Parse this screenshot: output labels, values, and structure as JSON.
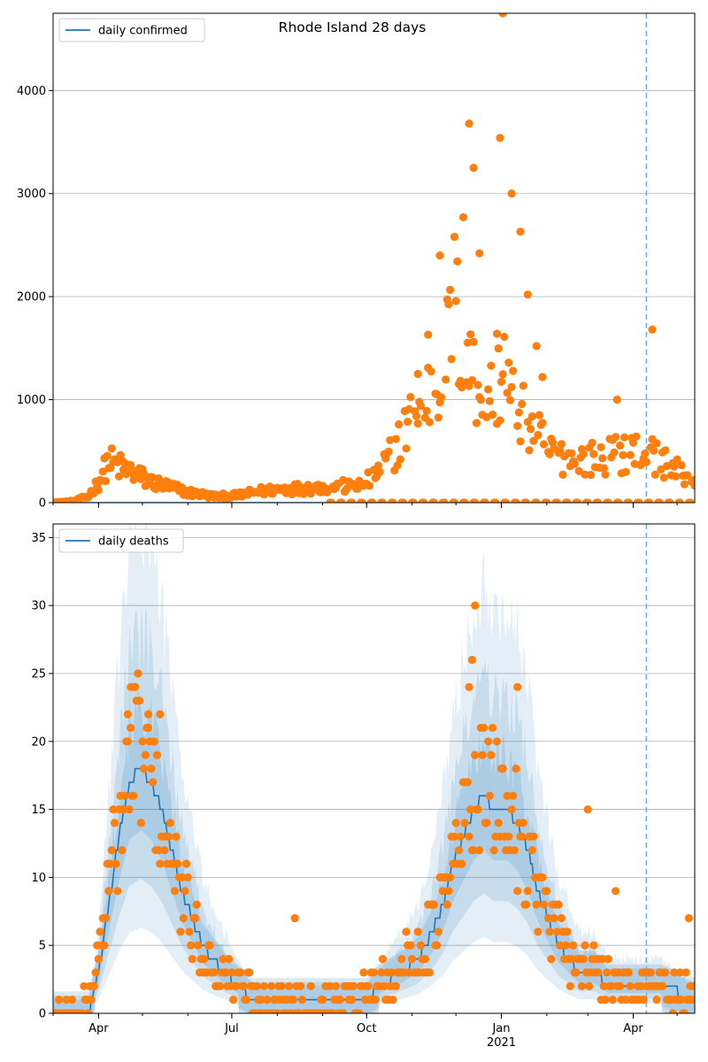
{
  "chart_data": [
    {
      "type": "scatter",
      "title": "Rhode Island 28 days",
      "legend": {
        "entries": [
          "daily confirmed"
        ],
        "position": "top-left"
      },
      "x_range": [
        "2020-03-01",
        "2021-05-13"
      ],
      "ylim": [
        0,
        4750
      ],
      "y_ticks": [
        0,
        1000,
        2000,
        3000,
        4000
      ],
      "x_ticks": [
        {
          "date": "2020-04-01",
          "label": "Apr"
        },
        {
          "date": "2020-07-01",
          "label": "Jul"
        },
        {
          "date": "2020-10-01",
          "label": "Oct"
        },
        {
          "date": "2021-01-01",
          "label": "Jan",
          "sub": "2021"
        },
        {
          "date": "2021-04-01",
          "label": "Apr"
        }
      ],
      "grid": "horizontal",
      "vline_date": "2021-04-10",
      "colors": {
        "points": "#ff7f0e",
        "line": "#1f77b4",
        "vline": "#6aaed6",
        "band": "#1f77b4"
      },
      "reported_anchors": [
        [
          "2020-03-01",
          2
        ],
        [
          "2020-03-15",
          15
        ],
        [
          "2020-03-25",
          60
        ],
        [
          "2020-04-01",
          200
        ],
        [
          "2020-04-08",
          400
        ],
        [
          "2020-04-15",
          350
        ],
        [
          "2020-04-25",
          290
        ],
        [
          "2020-05-05",
          210
        ],
        [
          "2020-05-20",
          150
        ],
        [
          "2020-06-01",
          100
        ],
        [
          "2020-06-20",
          60
        ],
        [
          "2020-07-05",
          70
        ],
        [
          "2020-07-20",
          110
        ],
        [
          "2020-08-01",
          130
        ],
        [
          "2020-08-20",
          140
        ],
        [
          "2020-09-01",
          150
        ],
        [
          "2020-09-20",
          160
        ],
        [
          "2020-10-01",
          200
        ],
        [
          "2020-10-15",
          400
        ],
        [
          "2020-11-01",
          800
        ],
        [
          "2020-11-15",
          1100
        ],
        [
          "2020-11-25",
          1500
        ],
        [
          "2020-12-01",
          1800
        ],
        [
          "2020-12-10",
          1300
        ],
        [
          "2020-12-20",
          1100
        ],
        [
          "2021-01-01",
          1200
        ],
        [
          "2021-01-10",
          1000
        ],
        [
          "2021-01-20",
          800
        ],
        [
          "2021-02-01",
          500
        ],
        [
          "2021-02-15",
          420
        ],
        [
          "2021-03-01",
          420
        ],
        [
          "2021-03-15",
          450
        ],
        [
          "2021-04-01",
          500
        ],
        [
          "2021-04-15",
          450
        ],
        [
          "2021-05-01",
          300
        ],
        [
          "2021-05-13",
          200
        ]
      ],
      "reported_outliers": [
        [
          "2021-01-02",
          4750
        ],
        [
          "2020-12-10",
          3680
        ],
        [
          "2020-12-31",
          3540
        ],
        [
          "2020-12-13",
          3250
        ],
        [
          "2021-01-08",
          3000
        ],
        [
          "2020-12-06",
          2770
        ],
        [
          "2021-01-14",
          2630
        ],
        [
          "2020-11-30",
          2580
        ],
        [
          "2020-12-17",
          2420
        ],
        [
          "2020-11-20",
          2400
        ],
        [
          "2021-01-19",
          2020
        ],
        [
          "2021-04-14",
          1680
        ],
        [
          "2020-12-29",
          1640
        ],
        [
          "2021-01-03",
          1610
        ],
        [
          "2020-11-12",
          1630
        ],
        [
          "2021-01-25",
          1520
        ],
        [
          "2020-12-13",
          1560
        ],
        [
          "2020-11-05",
          1250
        ],
        [
          "2021-01-29",
          1220
        ],
        [
          "2021-03-21",
          1000
        ]
      ],
      "reported_zero_days_from": "2020-09-05",
      "trend_anchors": [
        [
          "2020-03-01",
          0
        ],
        [
          "2021-05-13",
          0
        ]
      ]
    },
    {
      "type": "scatter",
      "legend": {
        "entries": [
          "daily deaths"
        ],
        "position": "top-left"
      },
      "x_range": [
        "2020-03-01",
        "2021-05-13"
      ],
      "ylim": [
        0,
        36
      ],
      "y_ticks": [
        0,
        5,
        10,
        15,
        20,
        25,
        30,
        35
      ],
      "x_ticks": [
        {
          "date": "2020-04-01",
          "label": "Apr"
        },
        {
          "date": "2020-07-01",
          "label": "Jul"
        },
        {
          "date": "2020-10-01",
          "label": "Oct"
        },
        {
          "date": "2021-01-01",
          "label": "Jan",
          "sub": "2021"
        },
        {
          "date": "2021-04-01",
          "label": "Apr"
        }
      ],
      "grid": "horizontal",
      "vline_date": "2021-04-10",
      "colors": {
        "points": "#ff7f0e",
        "line": "#1f77b4",
        "vline": "#6aaed6",
        "band": "#1f77b4"
      },
      "reported_anchors": [
        [
          "2020-03-01",
          0
        ],
        [
          "2020-03-20",
          0
        ],
        [
          "2020-03-28",
          2
        ],
        [
          "2020-04-05",
          7
        ],
        [
          "2020-04-12",
          12
        ],
        [
          "2020-04-20",
          17
        ],
        [
          "2020-04-28",
          20
        ],
        [
          "2020-05-05",
          18
        ],
        [
          "2020-05-12",
          15
        ],
        [
          "2020-05-20",
          11
        ],
        [
          "2020-05-28",
          9
        ],
        [
          "2020-06-05",
          6
        ],
        [
          "2020-06-15",
          4
        ],
        [
          "2020-06-25",
          3
        ],
        [
          "2020-07-05",
          2
        ],
        [
          "2020-07-20",
          1
        ],
        [
          "2020-08-10",
          1
        ],
        [
          "2020-09-01",
          1
        ],
        [
          "2020-09-20",
          1
        ],
        [
          "2020-10-05",
          2
        ],
        [
          "2020-10-20",
          3
        ],
        [
          "2020-11-01",
          4
        ],
        [
          "2020-11-15",
          6
        ],
        [
          "2020-11-25",
          9
        ],
        [
          "2020-12-05",
          13
        ],
        [
          "2020-12-15",
          17
        ],
        [
          "2020-12-25",
          16
        ],
        [
          "2021-01-05",
          15
        ],
        [
          "2021-01-15",
          13
        ],
        [
          "2021-01-25",
          10
        ],
        [
          "2021-02-05",
          6
        ],
        [
          "2021-02-20",
          4
        ],
        [
          "2021-03-05",
          3
        ],
        [
          "2021-03-20",
          2
        ],
        [
          "2021-04-05",
          2
        ],
        [
          "2021-04-20",
          2
        ],
        [
          "2021-05-13",
          1
        ]
      ],
      "reported_outliers": [
        [
          "2020-12-14",
          30
        ],
        [
          "2020-12-12",
          26
        ],
        [
          "2020-12-10",
          24
        ],
        [
          "2021-01-12",
          24
        ],
        [
          "2020-04-23",
          24
        ],
        [
          "2020-04-25",
          24
        ],
        [
          "2020-05-13",
          22
        ],
        [
          "2020-05-05",
          22
        ],
        [
          "2020-04-21",
          22
        ],
        [
          "2021-03-01",
          15
        ],
        [
          "2020-08-13",
          7
        ],
        [
          "2021-05-09",
          7
        ],
        [
          "2021-03-20",
          9
        ]
      ],
      "reported_zero_days_from": "2020-03-01",
      "trend_anchors": [
        [
          "2020-03-01",
          0
        ],
        [
          "2020-03-25",
          0
        ],
        [
          "2020-04-01",
          3
        ],
        [
          "2020-04-08",
          8
        ],
        [
          "2020-04-15",
          13
        ],
        [
          "2020-04-22",
          17
        ],
        [
          "2020-04-30",
          18
        ],
        [
          "2020-05-07",
          17
        ],
        [
          "2020-05-14",
          15
        ],
        [
          "2020-05-21",
          12
        ],
        [
          "2020-05-28",
          9
        ],
        [
          "2020-06-04",
          7
        ],
        [
          "2020-06-11",
          5
        ],
        [
          "2020-06-18",
          4
        ],
        [
          "2020-06-25",
          3
        ],
        [
          "2020-07-05",
          2
        ],
        [
          "2020-07-15",
          1
        ],
        [
          "2020-08-15",
          1
        ],
        [
          "2020-09-15",
          1
        ],
        [
          "2020-10-01",
          1
        ],
        [
          "2020-10-10",
          2
        ],
        [
          "2020-10-25",
          3
        ],
        [
          "2020-11-05",
          4
        ],
        [
          "2020-11-15",
          6
        ],
        [
          "2020-11-22",
          8
        ],
        [
          "2020-11-29",
          11
        ],
        [
          "2020-12-06",
          13
        ],
        [
          "2020-12-13",
          15
        ],
        [
          "2020-12-20",
          16
        ],
        [
          "2020-12-27",
          15
        ],
        [
          "2021-01-05",
          15
        ],
        [
          "2021-01-12",
          14
        ],
        [
          "2021-01-19",
          12
        ],
        [
          "2021-01-26",
          9
        ],
        [
          "2021-02-02",
          7
        ],
        [
          "2021-02-09",
          5
        ],
        [
          "2021-02-16",
          4
        ],
        [
          "2021-02-23",
          3
        ],
        [
          "2021-03-05",
          3
        ],
        [
          "2021-03-15",
          2
        ],
        [
          "2021-03-25",
          2
        ],
        [
          "2021-04-05",
          2
        ],
        [
          "2021-04-20",
          2
        ],
        [
          "2021-05-13",
          1
        ]
      ]
    }
  ]
}
